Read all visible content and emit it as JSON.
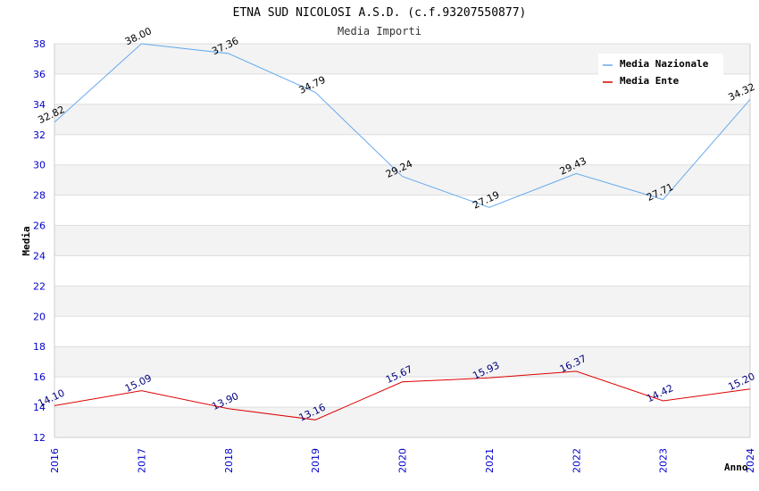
{
  "chart_data": {
    "type": "line",
    "title": "ETNA SUD NICOLOSI A.S.D. (c.f.93207550877)",
    "subtitle": "Media Importi",
    "xlabel": "Anno",
    "ylabel": "Media",
    "x": [
      "2016",
      "2017",
      "2018",
      "2019",
      "2020",
      "2021",
      "2022",
      "2023",
      "2024"
    ],
    "ylim": [
      12,
      38
    ],
    "yticks": [
      "12",
      "14",
      "16",
      "18",
      "20",
      "22",
      "24",
      "26",
      "28",
      "30",
      "32",
      "34",
      "36",
      "38"
    ],
    "grid": true,
    "legend_position": "top-right",
    "series": [
      {
        "name": "Media Nazionale",
        "color": "#66aaee",
        "label_color": "#000000",
        "values": [
          32.82,
          38.0,
          37.36,
          34.79,
          29.24,
          27.19,
          29.43,
          27.71,
          34.32
        ],
        "labels": [
          "32.82",
          "38.00",
          "37.36",
          "34.79",
          "29.24",
          "27.19",
          "29.43",
          "27.71",
          "34.32"
        ]
      },
      {
        "name": "Media Ente",
        "color": "#dd0000",
        "label_color": "#000080",
        "values": [
          14.1,
          15.09,
          13.9,
          13.16,
          15.67,
          15.93,
          16.37,
          14.42,
          15.2
        ],
        "labels": [
          "14.10",
          "15.09",
          "13.90",
          "13.16",
          "15.67",
          "15.93",
          "16.37",
          "14.42",
          "15.20"
        ]
      }
    ]
  }
}
